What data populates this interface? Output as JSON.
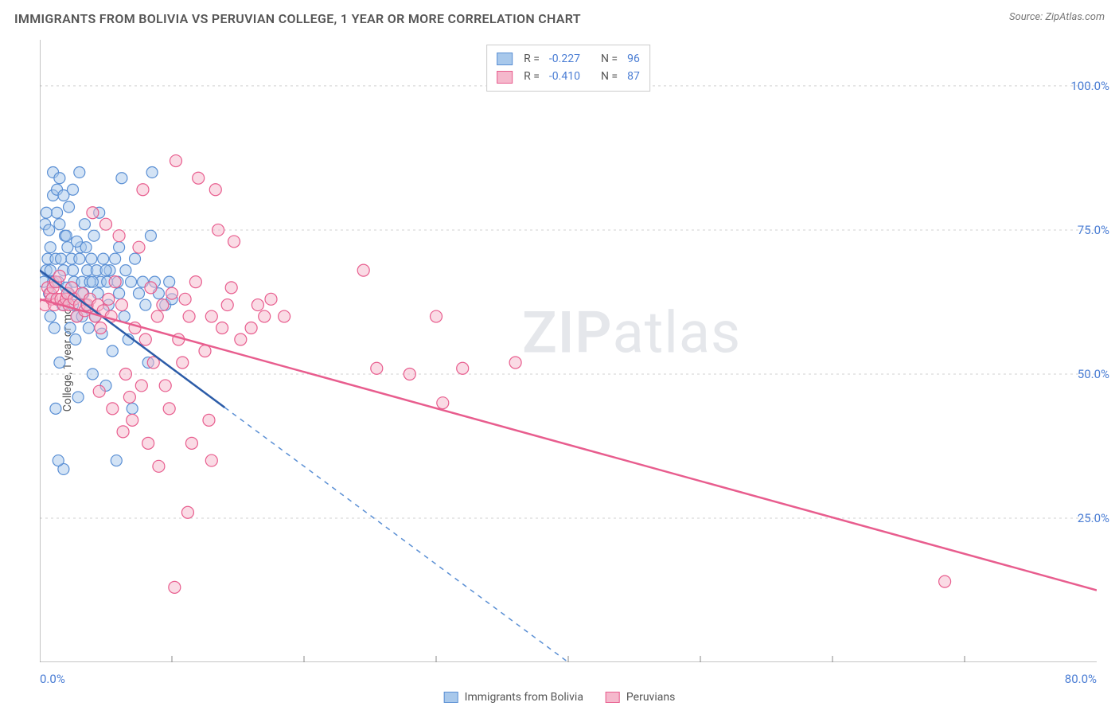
{
  "title": "IMMIGRANTS FROM BOLIVIA VS PERUVIAN COLLEGE, 1 YEAR OR MORE CORRELATION CHART",
  "source_label": "Source:",
  "source_name": "ZipAtlas.com",
  "watermark": {
    "bold": "ZIP",
    "rest": "atlas"
  },
  "chart": {
    "type": "scatter",
    "ylabel": "College, 1 year or more",
    "background_color": "#ffffff",
    "grid_color": "#d0d0d0",
    "axis_color": "#888",
    "xlim": [
      0,
      80
    ],
    "ylim": [
      0,
      108
    ],
    "xtick_labels": [
      "0.0%",
      "80.0%"
    ],
    "xtick_positions": [
      0,
      80
    ],
    "xtick_minor": [
      10,
      20,
      30,
      40,
      50,
      60,
      70
    ],
    "ytick_labels": [
      "25.0%",
      "50.0%",
      "75.0%",
      "100.0%"
    ],
    "ytick_positions": [
      25,
      50,
      75,
      100
    ],
    "series": [
      {
        "name": "Immigrants from Bolivia",
        "fill_color": "#a8c8eb",
        "stroke_color": "#5a8fd4",
        "fill_opacity": 0.5,
        "marker_radius": 7,
        "R": "-0.227",
        "N": "96",
        "trend": {
          "x1": 0,
          "y1": 68,
          "x2": 40,
          "y2": 0,
          "dash_after_x": 14,
          "solid_color": "#2c5ca8",
          "dash_color": "#5a8fd4"
        },
        "points": [
          [
            0.3,
            66
          ],
          [
            0.4,
            76
          ],
          [
            0.5,
            68
          ],
          [
            0.6,
            70
          ],
          [
            0.7,
            64
          ],
          [
            0.8,
            72
          ],
          [
            0.8,
            60
          ],
          [
            1.0,
            85
          ],
          [
            1.0,
            66
          ],
          [
            1.1,
            58
          ],
          [
            1.2,
            70
          ],
          [
            1.2,
            44
          ],
          [
            1.3,
            78
          ],
          [
            1.4,
            66
          ],
          [
            1.5,
            52
          ],
          [
            1.5,
            84
          ],
          [
            1.6,
            70
          ],
          [
            1.7,
            62
          ],
          [
            1.8,
            68
          ],
          [
            1.8,
            33.5
          ],
          [
            1.9,
            74
          ],
          [
            2.0,
            65
          ],
          [
            2.1,
            72
          ],
          [
            2.2,
            64
          ],
          [
            2.3,
            58
          ],
          [
            2.4,
            70
          ],
          [
            2.5,
            82
          ],
          [
            2.5,
            68
          ],
          [
            2.6,
            66
          ],
          [
            2.7,
            56
          ],
          [
            2.8,
            60
          ],
          [
            2.9,
            46
          ],
          [
            3.0,
            85
          ],
          [
            3.0,
            70
          ],
          [
            3.1,
            72
          ],
          [
            3.2,
            66
          ],
          [
            3.3,
            64
          ],
          [
            3.4,
            76
          ],
          [
            3.5,
            62
          ],
          [
            3.6,
            68
          ],
          [
            3.7,
            58
          ],
          [
            3.8,
            66
          ],
          [
            3.9,
            70
          ],
          [
            4.0,
            50
          ],
          [
            4.1,
            74
          ],
          [
            4.2,
            60
          ],
          [
            4.3,
            68
          ],
          [
            4.4,
            64
          ],
          [
            4.5,
            78
          ],
          [
            4.6,
            66
          ],
          [
            4.7,
            57
          ],
          [
            4.8,
            70
          ],
          [
            5.0,
            48
          ],
          [
            5.1,
            66
          ],
          [
            5.2,
            62
          ],
          [
            5.3,
            68
          ],
          [
            5.5,
            54
          ],
          [
            5.7,
            70
          ],
          [
            5.8,
            35
          ],
          [
            5.9,
            66
          ],
          [
            6.0,
            64
          ],
          [
            6.2,
            84
          ],
          [
            6.4,
            60
          ],
          [
            6.5,
            68
          ],
          [
            6.7,
            56
          ],
          [
            6.9,
            66
          ],
          [
            7.0,
            44
          ],
          [
            7.2,
            70
          ],
          [
            7.5,
            64
          ],
          [
            7.8,
            66
          ],
          [
            8.0,
            62
          ],
          [
            8.2,
            52
          ],
          [
            8.4,
            74
          ],
          [
            8.7,
            66
          ],
          [
            9.0,
            64
          ],
          [
            8.5,
            85
          ],
          [
            9.5,
            62
          ],
          [
            9.8,
            66
          ],
          [
            10.0,
            63
          ],
          [
            1.0,
            81
          ],
          [
            1.3,
            82
          ],
          [
            1.8,
            81
          ],
          [
            2.2,
            79
          ],
          [
            0.5,
            78
          ],
          [
            0.7,
            75
          ],
          [
            1.5,
            76
          ],
          [
            2.0,
            74
          ],
          [
            2.8,
            73
          ],
          [
            3.5,
            72
          ],
          [
            0.8,
            68
          ],
          [
            1.4,
            35
          ],
          [
            2.5,
            62
          ],
          [
            3.2,
            60
          ],
          [
            4.0,
            66
          ],
          [
            5.0,
            68
          ],
          [
            6.0,
            72
          ]
        ]
      },
      {
        "name": "Peruvians",
        "fill_color": "#f5b8cc",
        "stroke_color": "#e85d8e",
        "fill_opacity": 0.5,
        "marker_radius": 7.5,
        "R": "-0.410",
        "N": "87",
        "trend": {
          "x1": 0,
          "y1": 63,
          "x2": 80,
          "y2": 12.5,
          "solid_color": "#e85d8e"
        },
        "points": [
          [
            0.4,
            62
          ],
          [
            0.6,
            65
          ],
          [
            0.8,
            64
          ],
          [
            0.9,
            63
          ],
          [
            1.0,
            65
          ],
          [
            1.1,
            62
          ],
          [
            1.2,
            66
          ],
          [
            1.3,
            63
          ],
          [
            1.5,
            67
          ],
          [
            1.6,
            63
          ],
          [
            1.8,
            62
          ],
          [
            2.0,
            63
          ],
          [
            2.1,
            64
          ],
          [
            2.2,
            62
          ],
          [
            2.4,
            65
          ],
          [
            2.6,
            63
          ],
          [
            2.8,
            60
          ],
          [
            3.0,
            62
          ],
          [
            3.2,
            64
          ],
          [
            3.4,
            61
          ],
          [
            3.6,
            62
          ],
          [
            3.8,
            63
          ],
          [
            4.0,
            78
          ],
          [
            4.2,
            60
          ],
          [
            4.4,
            62
          ],
          [
            4.6,
            58
          ],
          [
            4.8,
            61
          ],
          [
            5.0,
            76
          ],
          [
            5.2,
            63
          ],
          [
            5.4,
            60
          ],
          [
            5.7,
            66
          ],
          [
            6.0,
            74
          ],
          [
            6.2,
            62
          ],
          [
            6.5,
            50
          ],
          [
            6.8,
            46
          ],
          [
            7.0,
            42
          ],
          [
            7.2,
            58
          ],
          [
            7.5,
            72
          ],
          [
            7.7,
            48
          ],
          [
            7.8,
            82
          ],
          [
            8.0,
            56
          ],
          [
            8.2,
            38
          ],
          [
            8.4,
            65
          ],
          [
            8.6,
            52
          ],
          [
            8.9,
            60
          ],
          [
            9.0,
            34
          ],
          [
            9.3,
            62
          ],
          [
            9.5,
            48
          ],
          [
            9.8,
            44
          ],
          [
            10.0,
            64
          ],
          [
            10.3,
            87
          ],
          [
            10.5,
            56
          ],
          [
            10.8,
            52
          ],
          [
            11.0,
            63
          ],
          [
            11.3,
            60
          ],
          [
            11.5,
            38
          ],
          [
            11.8,
            66
          ],
          [
            12.0,
            84
          ],
          [
            12.5,
            54
          ],
          [
            12.8,
            42
          ],
          [
            13.0,
            60
          ],
          [
            13.3,
            82
          ],
          [
            13.5,
            75
          ],
          [
            13.8,
            58
          ],
          [
            14.2,
            62
          ],
          [
            14.5,
            65
          ],
          [
            14.7,
            73
          ],
          [
            15.2,
            56
          ],
          [
            16.0,
            58
          ],
          [
            16.5,
            62
          ],
          [
            17.0,
            60
          ],
          [
            17.5,
            63
          ],
          [
            18.5,
            60
          ],
          [
            11.2,
            26
          ],
          [
            13.0,
            35
          ],
          [
            10.2,
            13
          ],
          [
            24.5,
            68
          ],
          [
            28.0,
            50
          ],
          [
            30.5,
            45
          ],
          [
            32.0,
            51
          ],
          [
            30.0,
            60
          ],
          [
            25.5,
            51
          ],
          [
            36.0,
            52
          ],
          [
            68.5,
            14
          ],
          [
            4.5,
            47
          ],
          [
            5.5,
            44
          ],
          [
            6.3,
            40
          ]
        ]
      }
    ]
  },
  "legend_bottom": [
    {
      "label": "Immigrants from Bolivia",
      "fill": "#a8c8eb",
      "stroke": "#5a8fd4"
    },
    {
      "label": "Peruvians",
      "fill": "#f5b8cc",
      "stroke": "#e85d8e"
    }
  ]
}
